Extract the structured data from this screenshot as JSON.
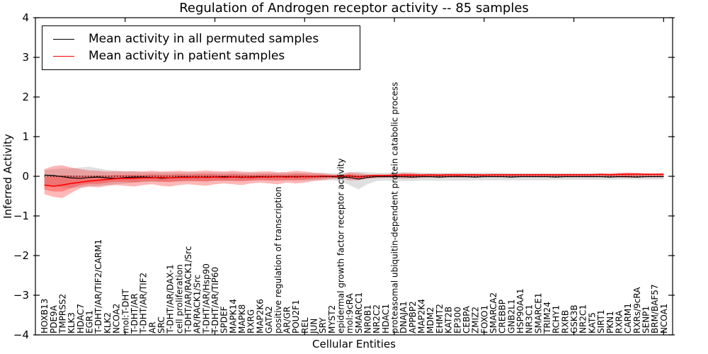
{
  "title": "Regulation of Androgen receptor activity -- 85 samples",
  "legend": {
    "position": "upper left",
    "items": [
      {
        "label": "Mean activity in all permuted samples",
        "color": "#000000"
      },
      {
        "label": "Mean activity in patient samples",
        "color": "#ff0000"
      }
    ]
  },
  "chart_data": {
    "type": "line",
    "title": "Regulation of Androgen receptor activity -- 85 samples",
    "xlabel": "Cellular Entities",
    "ylabel": "Inferred Activity",
    "ylim": [
      -4,
      4
    ],
    "grid": false,
    "zero_line": true,
    "yticks": [
      {
        "v": -4,
        "label": "−4"
      },
      {
        "v": -3,
        "label": "−3"
      },
      {
        "v": -2,
        "label": "−2"
      },
      {
        "v": -1,
        "label": "−1"
      },
      {
        "v": 0,
        "label": "0"
      },
      {
        "v": 1,
        "label": "1"
      },
      {
        "v": 2,
        "label": "2"
      },
      {
        "v": 3,
        "label": "3"
      },
      {
        "v": 4,
        "label": "4"
      }
    ],
    "xticks_at": [
      10,
      20,
      30,
      40,
      50,
      60,
      70
    ],
    "categories": [
      "HOXB13",
      "PDE9A",
      "TMPRSS2",
      "KLK3",
      "HDAC7",
      "EGR1",
      "T-DHT/AR/TIF2/CARM1",
      "KLK2",
      "NCOA2",
      "mol:T-DHT",
      "T-DHT/AR",
      "T-DHT/AR/TIF2",
      "AR",
      "SRC",
      "T-DHT/AR/DAX-1",
      "cell proliferation",
      "T-DHT/AR/RACK1/Src",
      "AR/RACK1/Src",
      "T-DHT/AR/Hsp90",
      "T-DHT/AR/TIP60",
      "SPDEF",
      "MAPK14",
      "MAPK8",
      "RXRG",
      "MAP2K6",
      "GATA2",
      "positive regulation of transcription",
      "AR/GR",
      "POU2F1",
      "REL",
      "JUN",
      "SRY",
      "MYST2",
      "epidermal growth factor receptor activity",
      "mol:9cRA",
      "SMARCC1",
      "NR0B1",
      "NR2C2",
      "HDAC1",
      "proteasomal ubiquitin-dependent protein catabolic process",
      "DNAJA1",
      "APPBP2",
      "MAP2K4",
      "MDM2",
      "EHMT2",
      "KAT2B",
      "EP300",
      "CEBPA",
      "ZMIZ2",
      "FOXO1",
      "SMARCA2",
      "CREBBP",
      "GNB2L1",
      "HSP90AA1",
      "NR3C1",
      "SMARCE1",
      "TRIM24",
      "RCHY1",
      "RXRB",
      "GSK3B",
      "NR2C1",
      "KAT5",
      "SIRT1",
      "PKN1",
      "RXRA",
      "CARM1",
      "RXRs/9cRA",
      "SENP1",
      "BRM/BAF57",
      "NCOA1"
    ],
    "series": [
      {
        "id": "permuted",
        "name": "Mean activity in all permuted samples",
        "color": "#000000",
        "width": 1.2,
        "values": [
          0.03,
          0.02,
          -0.01,
          -0.04,
          -0.05,
          -0.03,
          -0.02,
          -0.04,
          -0.05,
          -0.03,
          -0.02,
          -0.02,
          -0.03,
          -0.05,
          -0.04,
          -0.02,
          -0.02,
          -0.03,
          -0.02,
          -0.02,
          -0.01,
          -0.02,
          -0.03,
          -0.02,
          -0.01,
          -0.02,
          -0.01,
          -0.01,
          -0.02,
          -0.01,
          -0.01,
          -0.01,
          -0.01,
          -0.02,
          -0.03,
          -0.07,
          -0.03,
          -0.01,
          -0.01,
          -0.01,
          -0.01,
          -0.02,
          -0.01,
          -0.01,
          -0.02,
          -0.01,
          -0.01,
          -0.01,
          -0.02,
          -0.01,
          -0.01,
          -0.01,
          -0.02,
          -0.01,
          -0.01,
          -0.01,
          -0.01,
          -0.02,
          -0.01,
          -0.01,
          -0.01,
          -0.01,
          -0.01,
          -0.02,
          -0.01,
          -0.01,
          -0.02,
          -0.01,
          -0.01,
          -0.01
        ]
      },
      {
        "id": "patient",
        "name": "Mean activity in patient samples",
        "color": "#ff0000",
        "width": 1.6,
        "values": [
          -0.22,
          -0.25,
          -0.22,
          -0.18,
          -0.15,
          -0.12,
          -0.1,
          -0.08,
          -0.06,
          -0.05,
          -0.05,
          -0.04,
          -0.04,
          -0.03,
          -0.04,
          -0.03,
          -0.03,
          -0.02,
          -0.03,
          -0.02,
          -0.03,
          -0.02,
          -0.02,
          -0.03,
          -0.02,
          -0.02,
          -0.01,
          -0.02,
          -0.01,
          -0.01,
          -0.01,
          0.0,
          0.0,
          0.0,
          0.01,
          -0.02,
          0.01,
          0.02,
          0.02,
          0.03,
          0.03,
          0.03,
          0.03,
          0.04,
          0.03,
          0.04,
          0.03,
          0.04,
          0.04,
          0.03,
          0.04,
          0.04,
          0.04,
          0.04,
          0.04,
          0.04,
          0.04,
          0.04,
          0.04,
          0.04,
          0.04,
          0.04,
          0.05,
          0.04,
          0.05,
          0.05,
          0.06,
          0.05,
          0.05,
          0.05
        ]
      }
    ],
    "bands": [
      {
        "name": "permuted-sample-range",
        "color": "#999999",
        "opacity": 0.3,
        "upper": [
          0.15,
          0.18,
          0.2,
          0.2,
          0.22,
          0.24,
          0.2,
          0.16,
          0.14,
          0.13,
          0.12,
          0.11,
          0.1,
          0.1,
          0.1,
          0.1,
          0.1,
          0.1,
          0.1,
          0.1,
          0.1,
          0.1,
          0.09,
          0.09,
          0.09,
          0.09,
          0.09,
          0.09,
          0.09,
          0.09,
          0.09,
          0.08,
          0.08,
          0.08,
          0.1,
          0.12,
          0.1,
          0.09,
          0.09,
          0.1,
          0.1,
          0.1,
          0.09,
          0.09,
          0.09,
          0.09,
          0.09,
          0.09,
          0.09,
          0.09,
          0.09,
          0.09,
          0.08,
          0.08,
          0.08,
          0.08,
          0.08,
          0.08,
          0.08,
          0.08,
          0.08,
          0.08,
          0.08,
          0.07,
          0.07,
          0.07,
          0.07,
          0.07,
          0.07,
          0.07
        ],
        "lower": [
          -0.2,
          -0.25,
          -0.28,
          -0.3,
          -0.28,
          -0.25,
          -0.24,
          -0.22,
          -0.2,
          -0.18,
          -0.16,
          -0.15,
          -0.14,
          -0.14,
          -0.13,
          -0.13,
          -0.12,
          -0.12,
          -0.12,
          -0.12,
          -0.12,
          -0.12,
          -0.12,
          -0.11,
          -0.11,
          -0.11,
          -0.11,
          -0.11,
          -0.11,
          -0.11,
          -0.1,
          -0.1,
          -0.1,
          -0.12,
          -0.22,
          -0.33,
          -0.2,
          -0.12,
          -0.11,
          -0.12,
          -0.12,
          -0.12,
          -0.11,
          -0.11,
          -0.11,
          -0.11,
          -0.11,
          -0.11,
          -0.1,
          -0.1,
          -0.1,
          -0.1,
          -0.1,
          -0.1,
          -0.1,
          -0.1,
          -0.1,
          -0.09,
          -0.09,
          -0.09,
          -0.09,
          -0.09,
          -0.09,
          -0.09,
          -0.08,
          -0.08,
          -0.08,
          -0.08,
          -0.08,
          -0.08
        ]
      },
      {
        "name": "patient-sample-range",
        "color": "#ff0000",
        "opacity": 0.28,
        "inner_factor": 0.5,
        "center": "patient",
        "upper": [
          0.18,
          0.26,
          0.28,
          0.22,
          0.18,
          0.15,
          0.14,
          0.12,
          0.13,
          0.12,
          0.13,
          0.12,
          0.14,
          0.12,
          0.13,
          0.14,
          0.12,
          0.13,
          0.15,
          0.13,
          0.12,
          0.14,
          0.12,
          0.11,
          0.12,
          0.13,
          0.1,
          0.11,
          0.14,
          0.12,
          0.09,
          0.08,
          0.05,
          0.04,
          0.1,
          0.08,
          0.05,
          0.05,
          0.05,
          0.05,
          0.09,
          0.08,
          0.06,
          0.06,
          0.06,
          0.06,
          0.07,
          0.06,
          0.06,
          0.06,
          0.06,
          0.06,
          0.06,
          0.06,
          0.06,
          0.06,
          0.06,
          0.06,
          0.06,
          0.06,
          0.06,
          0.06,
          0.06,
          0.07,
          0.08,
          0.1,
          0.08,
          0.07,
          0.07,
          0.08
        ],
        "lower": [
          -0.45,
          -0.52,
          -0.55,
          -0.42,
          -0.3,
          -0.26,
          -0.28,
          -0.24,
          -0.22,
          -0.24,
          -0.26,
          -0.22,
          -0.2,
          -0.24,
          -0.26,
          -0.22,
          -0.2,
          -0.22,
          -0.24,
          -0.2,
          -0.18,
          -0.2,
          -0.22,
          -0.18,
          -0.16,
          -0.18,
          -0.2,
          -0.16,
          -0.18,
          -0.16,
          -0.12,
          -0.1,
          -0.07,
          -0.05,
          -0.1,
          -0.1,
          -0.06,
          -0.05,
          -0.04,
          -0.04,
          -0.06,
          -0.05,
          -0.04,
          -0.03,
          -0.04,
          -0.03,
          -0.03,
          -0.03,
          -0.03,
          -0.02,
          -0.02,
          -0.02,
          -0.02,
          -0.02,
          -0.02,
          -0.02,
          -0.02,
          -0.02,
          -0.02,
          -0.02,
          -0.02,
          -0.02,
          -0.02,
          -0.02,
          -0.03,
          -0.04,
          -0.03,
          -0.02,
          -0.02,
          -0.02
        ]
      }
    ]
  }
}
